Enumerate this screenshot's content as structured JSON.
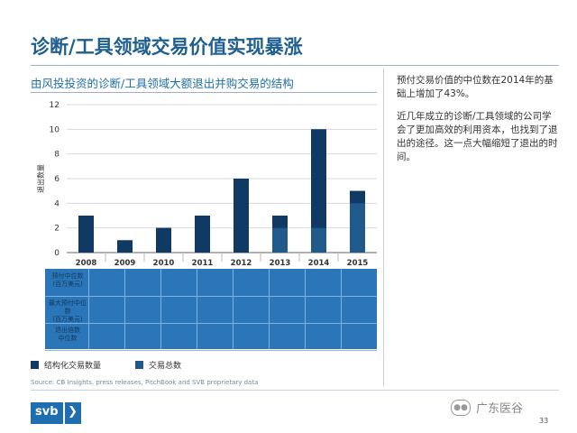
{
  "header": {
    "title": "诊断/工具领域交易价值实现暴涨"
  },
  "chart_data": {
    "type": "bar",
    "title": "由风投投资的诊断/工具领域大额退出并购交易的结构",
    "ylabel": "退出数量",
    "xlabel": "",
    "ylim": [
      0,
      12
    ],
    "yticks": [
      0,
      2,
      4,
      6,
      8,
      10,
      12
    ],
    "grid": true,
    "categories": [
      "2008",
      "2009",
      "2010",
      "2011",
      "2012",
      "2013",
      "2014",
      "2015"
    ],
    "series": [
      {
        "name": "交易总数",
        "values": [
          3,
          1,
          2,
          3,
          6,
          3,
          10,
          5
        ],
        "color": "#1f5a8a"
      },
      {
        "name": "结构化交易数量",
        "values": [
          3,
          1,
          2,
          3,
          6,
          1,
          8,
          1
        ],
        "color": "#103a63"
      }
    ],
    "legend_position": "bottom"
  },
  "table": {
    "row_labels": [
      "预付中位数\n(百万美元)",
      "最大预付中位数\n(百万美元)",
      "退出倍数\n中位数"
    ]
  },
  "sidebar": {
    "paragraphs": [
      "预付交易价值的中位数在2014年的基础上增加了43%。",
      "近几年成立的诊断/工具领域的公司学会了更加高效的利用资本，也找到了退出的途径。这一点大幅缩短了退出的时间。"
    ]
  },
  "legend": {
    "structured": "结构化交易数量",
    "total": "交易总数"
  },
  "footer": {
    "source": "Source: CB Insights, press releases, PitchBook and SVB proprietary data",
    "logo_text": "svb",
    "logo_chevron": "❯",
    "watermark": "广东医谷",
    "page_number": "33"
  },
  "colors": {
    "accent": "#1f6fa8",
    "bar_dark": "#103a63",
    "bar_mid": "#1f5a8a",
    "table_bg": "#2a76b8"
  }
}
